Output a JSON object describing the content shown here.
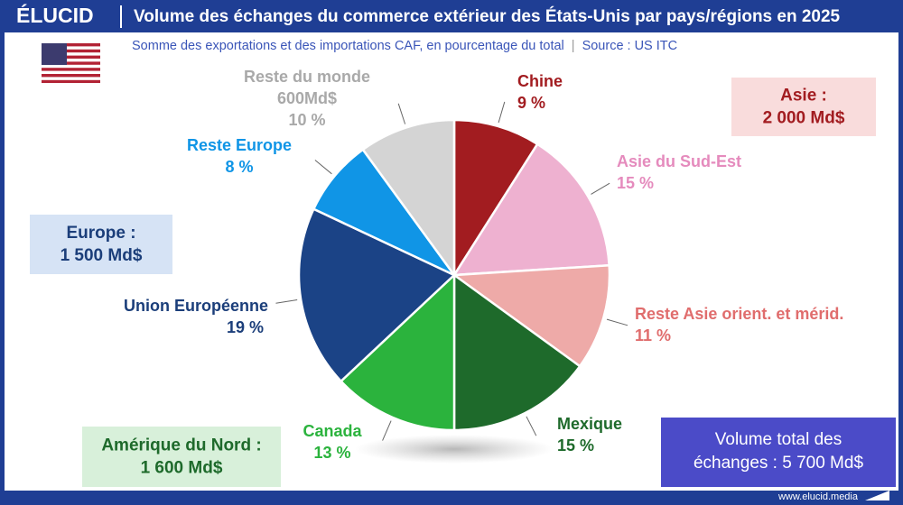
{
  "header": {
    "logo": "ÉLUCID",
    "subtitle": "Somme des exportations et des importations CAF, en pourcentage du total",
    "separator": "|",
    "source": "Source : US ITC"
  },
  "chart_data": {
    "type": "pie",
    "title": "Volume des échanges du commerce extérieur des États-Unis par pays/régions en 2025",
    "categories": [
      "Chine",
      "Asie du Sud-Est",
      "Reste Asie orient. et mérid.",
      "Mexique",
      "Canada",
      "Union Européenne",
      "Reste Europe",
      "Reste du monde"
    ],
    "values": [
      9,
      15,
      11,
      15,
      13,
      19,
      8,
      10
    ],
    "value_labels": [
      "9 %",
      "15 %",
      "11 %",
      "15 %",
      "13 %",
      "19 %",
      "8 %",
      "10 %"
    ],
    "colors": [
      "#a21c20",
      "#eeb1d0",
      "#eeaaa8",
      "#1e6a2b",
      "#2bb33d",
      "#1b4386",
      "#1095e6",
      "#d4d4d4"
    ],
    "label_colors": [
      "#a21c20",
      "#e58bbd",
      "#e06d6d",
      "#1e6a2b",
      "#2bb33d",
      "#1b3e7a",
      "#1095e6",
      "#a9a9a9"
    ],
    "annotations": [
      {
        "category": "Reste du monde",
        "text": "600Md$"
      }
    ]
  },
  "regions": [
    {
      "name": "Asie :",
      "total": "2 000 Md$"
    },
    {
      "name": "Europe :",
      "total": "1 500 Md$"
    },
    {
      "name": "Amérique du Nord :",
      "total": "1 600 Md$"
    }
  ],
  "total_box": {
    "lines": [
      "Volume total des",
      "échanges : 5 700 Md$"
    ]
  },
  "footer": {
    "url": "www.elucid.media"
  }
}
